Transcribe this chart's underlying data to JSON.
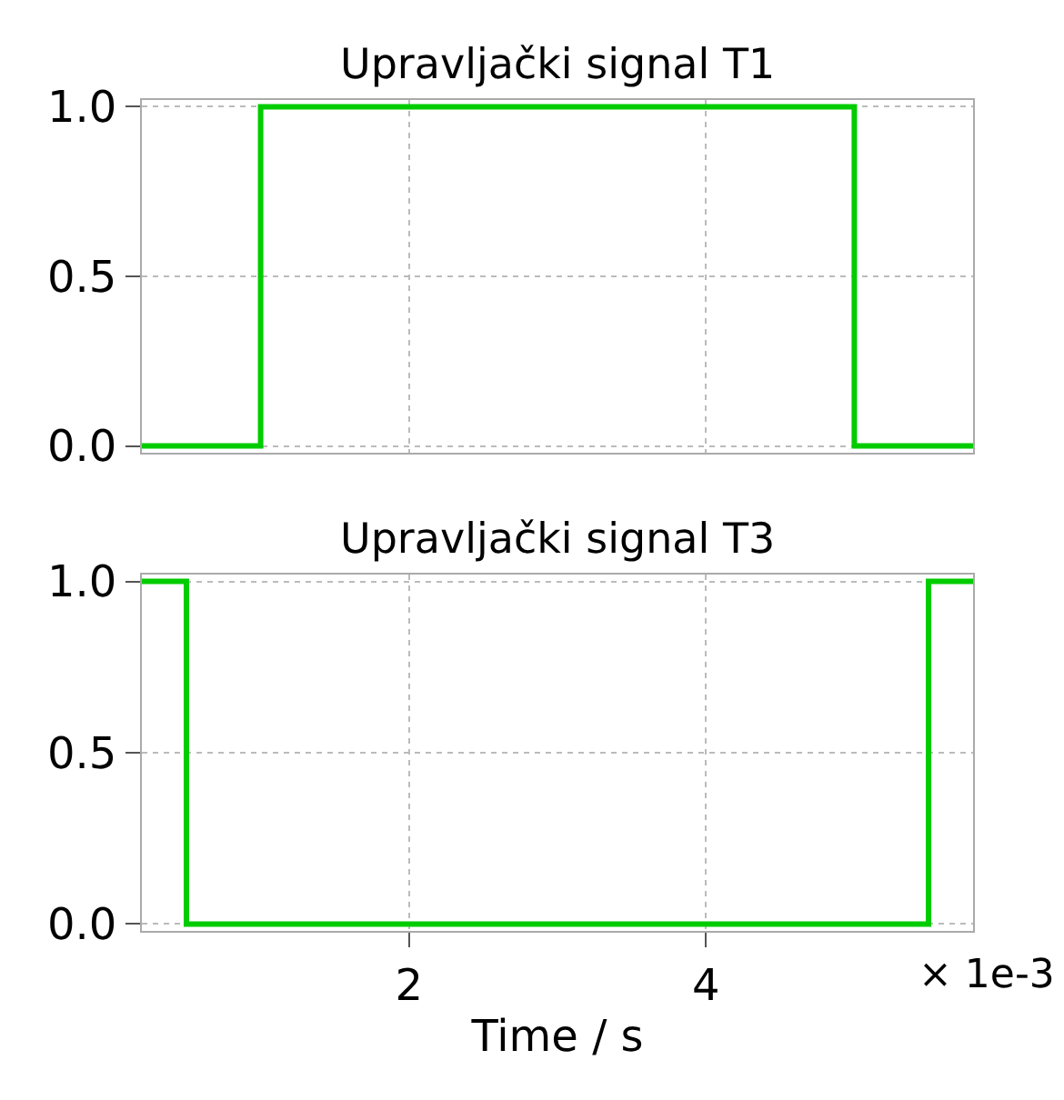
{
  "chart_data": [
    {
      "type": "step",
      "title": "Upravljački signal T1",
      "x": [
        0.2,
        1.0,
        5.0,
        5.8
      ],
      "series": [
        {
          "color": "#00cc00",
          "values": [
            0,
            1,
            0,
            0
          ]
        }
      ],
      "xlim": [
        0.2,
        5.8
      ],
      "xticks": [
        2,
        4
      ],
      "ylim": [
        -0.02,
        1.02
      ],
      "yticks": [
        {
          "value": 0,
          "label": "0.0"
        },
        {
          "value": 0.5,
          "label": "0.5"
        },
        {
          "value": 1,
          "label": "1.0"
        }
      ],
      "grid": true,
      "tick_labels": "y"
    },
    {
      "type": "step",
      "title": "Upravljački signal T3",
      "x": [
        0.2,
        0.5,
        5.5,
        5.8
      ],
      "series": [
        {
          "color": "#00cc00",
          "values": [
            1,
            0,
            1,
            1
          ]
        }
      ],
      "xlim": [
        0.2,
        5.8
      ],
      "xticks": [
        2,
        4
      ],
      "ylim": [
        -0.02,
        1.02
      ],
      "yticks": [
        {
          "value": 0,
          "label": "0.0"
        },
        {
          "value": 0.5,
          "label": "0.5"
        },
        {
          "value": 1,
          "label": "1.0"
        }
      ],
      "grid": true,
      "xlabel": "Time / s",
      "annotations": [
        "× 1e-3"
      ]
    }
  ]
}
